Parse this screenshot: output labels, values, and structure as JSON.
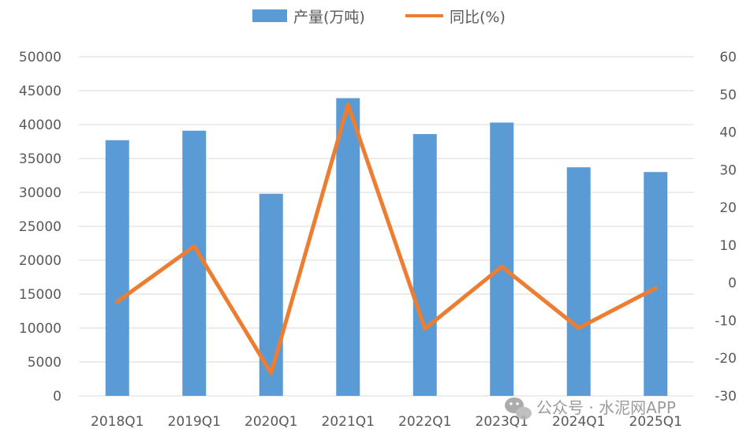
{
  "chart_data": {
    "type": "bar",
    "categories": [
      "2018Q1",
      "2019Q1",
      "2020Q1",
      "2021Q1",
      "2022Q1",
      "2023Q1",
      "2024Q1",
      "2025Q1"
    ],
    "series": [
      {
        "name": "产量(万吨)",
        "type": "bar",
        "axis": "left",
        "color": "#5B9BD5",
        "values": [
          37700,
          39100,
          29800,
          43900,
          38600,
          40300,
          33700,
          33000
        ]
      },
      {
        "name": "同比(%)",
        "type": "line",
        "axis": "right",
        "color": "#ED7D31",
        "values": [
          -5,
          9.7,
          -24,
          47.3,
          -12.2,
          4.3,
          -12,
          -1.4
        ]
      }
    ],
    "ylim_left": [
      0,
      50000
    ],
    "ylim_right": [
      -30,
      60
    ],
    "yticks_left": [
      0,
      5000,
      10000,
      15000,
      20000,
      25000,
      30000,
      35000,
      40000,
      45000,
      50000
    ],
    "yticks_right": [
      -30,
      -20,
      -10,
      0,
      10,
      20,
      30,
      40,
      50,
      60
    ],
    "grid": true,
    "legend": "top-center"
  },
  "watermark": {
    "text": "公众号 · 水泥网APP",
    "icon": "wechat-icon"
  }
}
